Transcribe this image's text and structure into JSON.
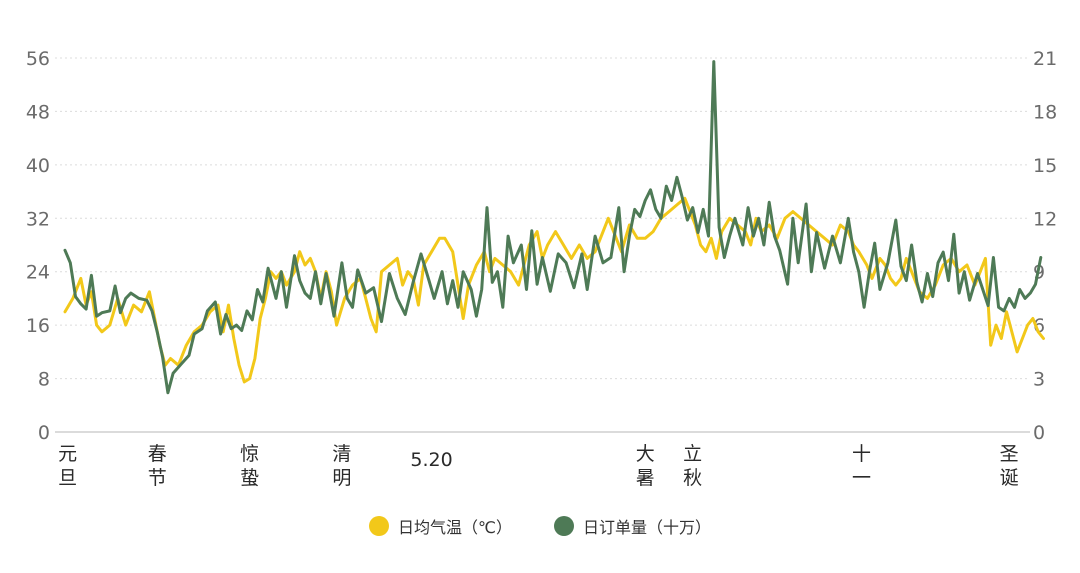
{
  "chart_data": {
    "type": "line",
    "title": "",
    "legend_position": "bottom-center",
    "grid": true,
    "x_labels": [
      {
        "day": 2,
        "lines": [
          "元",
          "旦"
        ]
      },
      {
        "day": 36,
        "lines": [
          "春",
          "节"
        ]
      },
      {
        "day": 71,
        "lines": [
          "惊",
          "蛰"
        ]
      },
      {
        "day": 106,
        "lines": [
          "清",
          "明"
        ]
      },
      {
        "day": 140,
        "lines": [
          "5.20"
        ]
      },
      {
        "day": 221,
        "lines": [
          "大",
          "暑"
        ]
      },
      {
        "day": 239,
        "lines": [
          "立",
          "秋"
        ]
      },
      {
        "day": 303,
        "lines": [
          "十",
          "一"
        ]
      },
      {
        "day": 359,
        "lines": [
          "圣",
          "诞"
        ]
      }
    ],
    "x_range": [
      1,
      365
    ],
    "y_left": {
      "ticks": [
        0,
        8,
        16,
        24,
        32,
        40,
        48,
        56
      ],
      "range": [
        0,
        56
      ]
    },
    "y_right": {
      "ticks": [
        0,
        3,
        6,
        9,
        12,
        15,
        18,
        21
      ],
      "range": [
        0,
        21
      ]
    },
    "series": [
      {
        "name": "日均气温（℃）",
        "axis": "left",
        "color": "#f2c81a",
        "points": [
          [
            1,
            18
          ],
          [
            4,
            20
          ],
          [
            7,
            23
          ],
          [
            9,
            19
          ],
          [
            11,
            21
          ],
          [
            13,
            16
          ],
          [
            15,
            15
          ],
          [
            18,
            16
          ],
          [
            21,
            20
          ],
          [
            24,
            16
          ],
          [
            27,
            19
          ],
          [
            30,
            18
          ],
          [
            33,
            21
          ],
          [
            35,
            17
          ],
          [
            37,
            13
          ],
          [
            39,
            10
          ],
          [
            41,
            11
          ],
          [
            44,
            10
          ],
          [
            47,
            13
          ],
          [
            50,
            15
          ],
          [
            53,
            16
          ],
          [
            56,
            18
          ],
          [
            59,
            19
          ],
          [
            61,
            15
          ],
          [
            63,
            19
          ],
          [
            65,
            14
          ],
          [
            67,
            10
          ],
          [
            69,
            7.5
          ],
          [
            71,
            8
          ],
          [
            73,
            11
          ],
          [
            75,
            17
          ],
          [
            77,
            20
          ],
          [
            79,
            24
          ],
          [
            81,
            23
          ],
          [
            83,
            24
          ],
          [
            85,
            22
          ],
          [
            88,
            24
          ],
          [
            90,
            27
          ],
          [
            92,
            25
          ],
          [
            94,
            26
          ],
          [
            96,
            24
          ],
          [
            98,
            20
          ],
          [
            100,
            24
          ],
          [
            102,
            21
          ],
          [
            104,
            16
          ],
          [
            107,
            20
          ],
          [
            110,
            22
          ],
          [
            113,
            23
          ],
          [
            115,
            20
          ],
          [
            117,
            17
          ],
          [
            119,
            15
          ],
          [
            121,
            24
          ],
          [
            124,
            25
          ],
          [
            127,
            26
          ],
          [
            129,
            22
          ],
          [
            131,
            24
          ],
          [
            133,
            23
          ],
          [
            135,
            19
          ],
          [
            137,
            25
          ],
          [
            140,
            27
          ],
          [
            143,
            29
          ],
          [
            145,
            29
          ],
          [
            148,
            27
          ],
          [
            150,
            22
          ],
          [
            152,
            17
          ],
          [
            154,
            22
          ],
          [
            157,
            25
          ],
          [
            160,
            27
          ],
          [
            162,
            24
          ],
          [
            164,
            26
          ],
          [
            167,
            25
          ],
          [
            170,
            24
          ],
          [
            173,
            22
          ],
          [
            175,
            25
          ],
          [
            177,
            28
          ],
          [
            180,
            30
          ],
          [
            182,
            26
          ],
          [
            184,
            28
          ],
          [
            187,
            30
          ],
          [
            190,
            28
          ],
          [
            193,
            26
          ],
          [
            196,
            28
          ],
          [
            199,
            26
          ],
          [
            202,
            27
          ],
          [
            204,
            29
          ],
          [
            207,
            32
          ],
          [
            209,
            30
          ],
          [
            212,
            27
          ],
          [
            215,
            31
          ],
          [
            218,
            29
          ],
          [
            221,
            29
          ],
          [
            224,
            30
          ],
          [
            227,
            32
          ],
          [
            230,
            33
          ],
          [
            233,
            34
          ],
          [
            236,
            35
          ],
          [
            238,
            33
          ],
          [
            240,
            31
          ],
          [
            242,
            28
          ],
          [
            244,
            27
          ],
          [
            246,
            29
          ],
          [
            248,
            26
          ],
          [
            250,
            30
          ],
          [
            253,
            32
          ],
          [
            256,
            31
          ],
          [
            259,
            30
          ],
          [
            261,
            28
          ],
          [
            263,
            32
          ],
          [
            265,
            30
          ],
          [
            268,
            31
          ],
          [
            271,
            29
          ],
          [
            274,
            32
          ],
          [
            277,
            33
          ],
          [
            280,
            32
          ],
          [
            283,
            31
          ],
          [
            286,
            30
          ],
          [
            289,
            29
          ],
          [
            292,
            28
          ],
          [
            295,
            31
          ],
          [
            298,
            30
          ],
          [
            300,
            28
          ],
          [
            302,
            27
          ],
          [
            305,
            25
          ],
          [
            307,
            23
          ],
          [
            310,
            26
          ],
          [
            312,
            25
          ],
          [
            314,
            23
          ],
          [
            316,
            22
          ],
          [
            318,
            23
          ],
          [
            320,
            26
          ],
          [
            322,
            24
          ],
          [
            325,
            21
          ],
          [
            328,
            20
          ],
          [
            331,
            22
          ],
          [
            334,
            25
          ],
          [
            337,
            26
          ],
          [
            340,
            24
          ],
          [
            343,
            25
          ],
          [
            346,
            22
          ],
          [
            348,
            24
          ],
          [
            350,
            26
          ],
          [
            352,
            13
          ],
          [
            354,
            16
          ],
          [
            356,
            14
          ],
          [
            358,
            18
          ],
          [
            360,
            15
          ],
          [
            362,
            12
          ],
          [
            364,
            14
          ],
          [
            366,
            16
          ],
          [
            368,
            17
          ],
          [
            370,
            15
          ],
          [
            372,
            14
          ]
        ]
      },
      {
        "name": "日订单量（十万）",
        "axis": "right",
        "color": "#4e7a56",
        "points": [
          [
            1,
            10.2
          ],
          [
            3,
            9.5
          ],
          [
            5,
            7.6
          ],
          [
            7,
            7.2
          ],
          [
            9,
            6.9
          ],
          [
            11,
            8.8
          ],
          [
            13,
            6.5
          ],
          [
            15,
            6.7
          ],
          [
            18,
            6.8
          ],
          [
            20,
            8.2
          ],
          [
            22,
            6.7
          ],
          [
            24,
            7.5
          ],
          [
            26,
            7.8
          ],
          [
            29,
            7.5
          ],
          [
            32,
            7.4
          ],
          [
            34,
            6.8
          ],
          [
            36,
            5.6
          ],
          [
            38,
            4.2
          ],
          [
            40,
            2.2
          ],
          [
            42,
            3.3
          ],
          [
            45,
            3.8
          ],
          [
            48,
            4.3
          ],
          [
            50,
            5.5
          ],
          [
            53,
            5.8
          ],
          [
            55,
            6.8
          ],
          [
            58,
            7.3
          ],
          [
            60,
            5.5
          ],
          [
            62,
            6.6
          ],
          [
            64,
            5.8
          ],
          [
            66,
            6.0
          ],
          [
            68,
            5.7
          ],
          [
            70,
            6.8
          ],
          [
            72,
            6.3
          ],
          [
            74,
            8.0
          ],
          [
            76,
            7.3
          ],
          [
            78,
            9.2
          ],
          [
            81,
            7.5
          ],
          [
            83,
            9.0
          ],
          [
            85,
            7.0
          ],
          [
            88,
            9.9
          ],
          [
            90,
            8.5
          ],
          [
            92,
            7.8
          ],
          [
            94,
            7.5
          ],
          [
            96,
            9.0
          ],
          [
            98,
            7.2
          ],
          [
            100,
            8.9
          ],
          [
            103,
            6.5
          ],
          [
            106,
            9.5
          ],
          [
            108,
            7.5
          ],
          [
            110,
            7.0
          ],
          [
            112,
            9.1
          ],
          [
            115,
            7.8
          ],
          [
            118,
            8.1
          ],
          [
            121,
            6.2
          ],
          [
            124,
            8.9
          ],
          [
            127,
            7.5
          ],
          [
            130,
            6.6
          ],
          [
            133,
            8.4
          ],
          [
            136,
            10.0
          ],
          [
            139,
            8.5
          ],
          [
            141,
            7.5
          ],
          [
            144,
            9.0
          ],
          [
            146,
            7.2
          ],
          [
            148,
            8.5
          ],
          [
            150,
            7.0
          ],
          [
            152,
            9.0
          ],
          [
            155,
            8.0
          ],
          [
            157,
            6.5
          ],
          [
            159,
            8.0
          ],
          [
            161,
            12.6
          ],
          [
            163,
            8.4
          ],
          [
            165,
            9.0
          ],
          [
            167,
            7.0
          ],
          [
            169,
            11.0
          ],
          [
            171,
            9.5
          ],
          [
            174,
            10.5
          ],
          [
            176,
            8.0
          ],
          [
            178,
            11.3
          ],
          [
            180,
            8.3
          ],
          [
            182,
            9.8
          ],
          [
            185,
            7.9
          ],
          [
            188,
            10.0
          ],
          [
            191,
            9.5
          ],
          [
            194,
            8.1
          ],
          [
            197,
            10.0
          ],
          [
            199,
            8.0
          ],
          [
            202,
            11.0
          ],
          [
            205,
            9.5
          ],
          [
            208,
            9.8
          ],
          [
            211,
            12.6
          ],
          [
            213,
            9.0
          ],
          [
            215,
            11.0
          ],
          [
            217,
            12.5
          ],
          [
            219,
            12.1
          ],
          [
            221,
            13.0
          ],
          [
            223,
            13.6
          ],
          [
            225,
            12.5
          ],
          [
            227,
            12.0
          ],
          [
            229,
            13.8
          ],
          [
            231,
            13.0
          ],
          [
            233,
            14.3
          ],
          [
            235,
            13.2
          ],
          [
            237,
            11.9
          ],
          [
            239,
            12.6
          ],
          [
            241,
            11.2
          ],
          [
            243,
            12.5
          ],
          [
            245,
            11.0
          ],
          [
            247,
            20.8
          ],
          [
            249,
            11.5
          ],
          [
            251,
            9.8
          ],
          [
            253,
            11.0
          ],
          [
            255,
            12.0
          ],
          [
            258,
            10.5
          ],
          [
            260,
            12.6
          ],
          [
            262,
            11.0
          ],
          [
            264,
            12.0
          ],
          [
            266,
            10.5
          ],
          [
            268,
            12.9
          ],
          [
            270,
            11.0
          ],
          [
            272,
            10.2
          ],
          [
            275,
            8.3
          ],
          [
            277,
            12.0
          ],
          [
            279,
            9.5
          ],
          [
            282,
            12.8
          ],
          [
            284,
            9.0
          ],
          [
            286,
            11.2
          ],
          [
            289,
            9.2
          ],
          [
            292,
            11.0
          ],
          [
            295,
            9.5
          ],
          [
            298,
            12.0
          ],
          [
            300,
            10.1
          ],
          [
            302,
            9.0
          ],
          [
            304,
            7.0
          ],
          [
            306,
            9.0
          ],
          [
            308,
            10.6
          ],
          [
            310,
            8.0
          ],
          [
            313,
            9.5
          ],
          [
            316,
            11.9
          ],
          [
            318,
            9.3
          ],
          [
            320,
            8.5
          ],
          [
            322,
            10.5
          ],
          [
            324,
            8.4
          ],
          [
            326,
            7.3
          ],
          [
            328,
            8.9
          ],
          [
            330,
            7.6
          ],
          [
            332,
            9.5
          ],
          [
            334,
            10.1
          ],
          [
            336,
            8.5
          ],
          [
            338,
            11.1
          ],
          [
            340,
            7.8
          ],
          [
            342,
            9.0
          ],
          [
            344,
            7.4
          ],
          [
            347,
            8.9
          ],
          [
            349,
            8.0
          ],
          [
            351,
            7.1
          ],
          [
            353,
            9.8
          ],
          [
            355,
            7.0
          ],
          [
            357,
            6.8
          ],
          [
            359,
            7.5
          ],
          [
            361,
            7.0
          ],
          [
            363,
            8.0
          ],
          [
            365,
            7.5
          ],
          [
            367,
            7.8
          ],
          [
            369,
            8.3
          ],
          [
            371,
            9.8
          ]
        ]
      }
    ]
  }
}
